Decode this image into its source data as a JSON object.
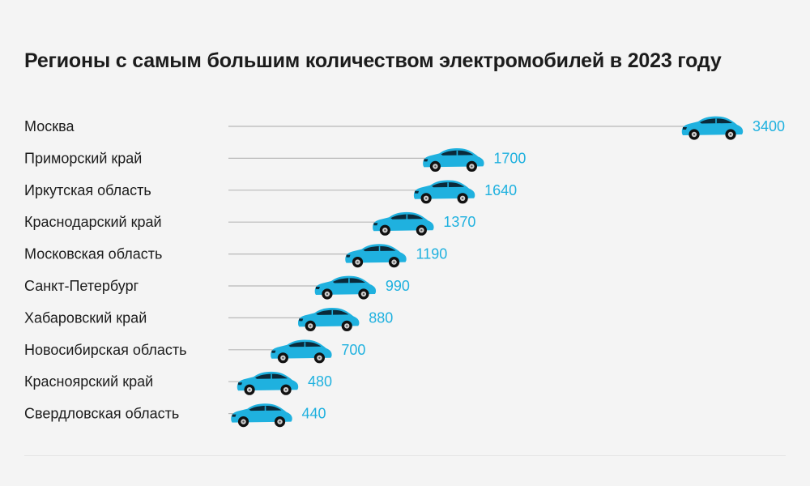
{
  "chart_data": {
    "type": "bar",
    "title": "Регионы с самым большим количеством электромобилей в 2023 году",
    "categories": [
      "Москва",
      "Приморский край",
      "Иркутская область",
      "Краснодарский край",
      "Московская область",
      "Санкт-Петербург",
      "Хабаровский край",
      "Новосибирская область",
      "Красноярский край",
      "Свердловская область"
    ],
    "values": [
      3400,
      1700,
      1640,
      1370,
      1190,
      990,
      880,
      700,
      480,
      440
    ],
    "value_labels": [
      "3400",
      "1700",
      "1640",
      "1370",
      "1190",
      "990",
      "880",
      "700",
      "480",
      "440"
    ],
    "orientation": "horizontal",
    "marker": "car-icon",
    "colors": {
      "marker": "#1fb1df",
      "value_text": "#1fb1df",
      "line": "#b8b8b8",
      "background": "#f4f4f4"
    }
  }
}
